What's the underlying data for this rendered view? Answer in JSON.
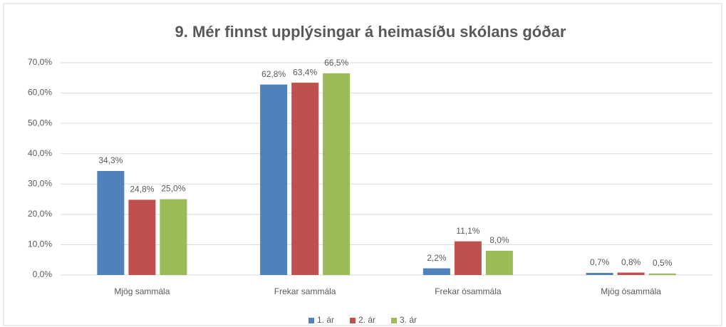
{
  "chart_data": {
    "type": "bar",
    "title": "9. Mér finnst upplýsingar á heimasíðu skólans góðar",
    "categories": [
      "Mjög sammála",
      "Frekar sammála",
      "Frekar ósammála",
      "Mjög ósammála"
    ],
    "series": [
      {
        "name": "1. ár",
        "color": "#4f81bd",
        "values": [
          34.3,
          62.8,
          2.2,
          0.7
        ],
        "value_labels": [
          "34,3%",
          "62,8%",
          "2,2%",
          "0,7%"
        ]
      },
      {
        "name": "2. ár",
        "color": "#c0504d",
        "values": [
          24.8,
          63.4,
          11.1,
          0.8
        ],
        "value_labels": [
          "24,8%",
          "63,4%",
          "11,1%",
          "0,8%"
        ]
      },
      {
        "name": "3. ár",
        "color": "#9bbb59",
        "values": [
          25.0,
          66.5,
          8.0,
          0.5
        ],
        "value_labels": [
          "25,0%",
          "66,5%",
          "8,0%",
          "0,5%"
        ]
      }
    ],
    "ylim": [
      0,
      70
    ],
    "yticks": [
      {
        "value": 0,
        "label": "0,0%"
      },
      {
        "value": 10,
        "label": "10,0%"
      },
      {
        "value": 20,
        "label": "20,0%"
      },
      {
        "value": 30,
        "label": "30,0%"
      },
      {
        "value": 40,
        "label": "40,0%"
      },
      {
        "value": 50,
        "label": "50,0%"
      },
      {
        "value": 60,
        "label": "60,0%"
      },
      {
        "value": 70,
        "label": "70,0%"
      }
    ],
    "grid": true,
    "legend": "bottom"
  }
}
